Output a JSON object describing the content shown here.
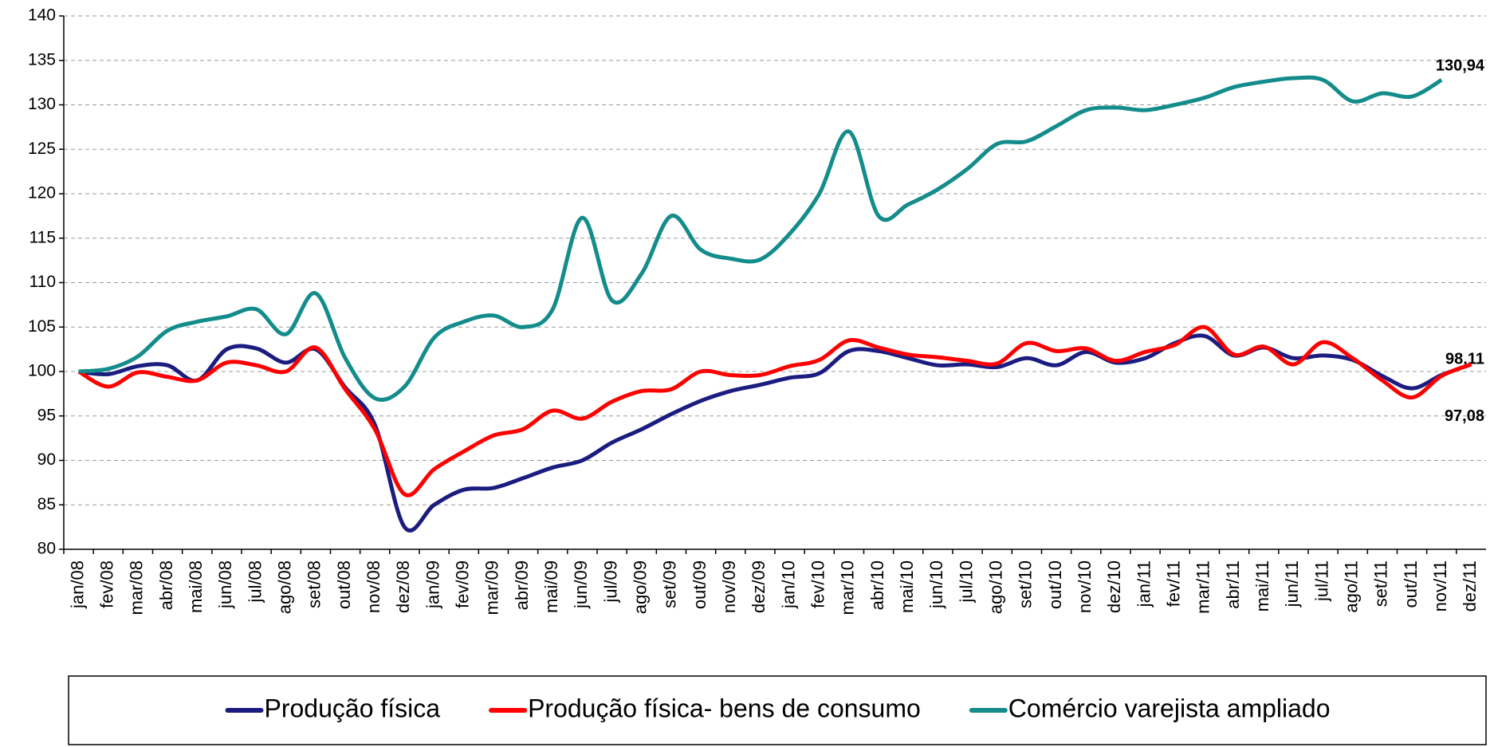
{
  "chart_data": {
    "type": "line",
    "categories": [
      "jan/08",
      "fev/08",
      "mar/08",
      "abr/08",
      "mai/08",
      "jun/08",
      "jul/08",
      "ago/08",
      "set/08",
      "out/08",
      "nov/08",
      "dez/08",
      "jan/09",
      "fev/09",
      "mar/09",
      "abr/09",
      "mai/09",
      "jun/09",
      "jul/09",
      "ago/09",
      "set/09",
      "out/09",
      "nov/09",
      "dez/09",
      "jan/10",
      "fev/10",
      "mar/10",
      "abr/10",
      "mai/10",
      "jun/10",
      "jul/10",
      "ago/10",
      "set/10",
      "out/10",
      "nov/10",
      "dez/10",
      "jan/11",
      "fev/11",
      "mar/11",
      "abr/11",
      "mai/11",
      "jun/11",
      "jul/11",
      "ago/11",
      "set/11",
      "out/11",
      "nov/11",
      "dez/11"
    ],
    "series": [
      {
        "name": "Produção física",
        "color": "#1b1c80",
        "values": [
          100,
          99.7,
          100.6,
          100.7,
          99.0,
          102.5,
          102.6,
          101.0,
          102.5,
          98.2,
          94.0,
          82.5,
          85.0,
          86.7,
          86.9,
          88.0,
          89.2,
          90.0,
          92.0,
          93.5,
          95.2,
          96.7,
          97.8,
          98.5,
          99.3,
          99.8,
          102.3,
          102.3,
          101.5,
          100.7,
          100.8,
          100.5,
          101.5,
          100.7,
          102.2,
          101.0,
          101.5,
          103.2,
          104.0,
          101.8,
          102.7,
          101.5,
          101.8,
          101.3,
          99.5,
          98.11,
          99.6,
          100.8
        ],
        "value_labels": [
          null,
          null,
          null,
          null,
          null,
          null,
          null,
          null,
          null,
          null,
          null,
          null,
          null,
          null,
          null,
          null,
          null,
          null,
          null,
          null,
          null,
          null,
          null,
          null,
          null,
          null,
          null,
          null,
          null,
          null,
          null,
          null,
          null,
          null,
          null,
          null,
          null,
          null,
          null,
          null,
          null,
          null,
          null,
          null,
          null,
          "98,11",
          null,
          null
        ]
      },
      {
        "name": "Produção física- bens de consumo",
        "color": "#ff0000",
        "values": [
          100,
          98.3,
          99.9,
          99.4,
          99.0,
          101.0,
          100.7,
          100.0,
          102.7,
          98.0,
          93.5,
          86.2,
          89.0,
          91.0,
          92.8,
          93.5,
          95.6,
          94.7,
          96.6,
          97.8,
          98.0,
          100.0,
          99.6,
          99.6,
          100.6,
          101.3,
          103.5,
          102.7,
          101.9,
          101.6,
          101.2,
          100.9,
          103.2,
          102.3,
          102.6,
          101.2,
          102.2,
          103.0,
          105.0,
          101.9,
          102.8,
          100.8,
          103.3,
          101.5,
          99.0,
          97.08,
          99.5,
          100.8
        ],
        "value_labels": [
          null,
          null,
          null,
          null,
          null,
          null,
          null,
          null,
          null,
          null,
          null,
          null,
          null,
          null,
          null,
          null,
          null,
          null,
          null,
          null,
          null,
          null,
          null,
          null,
          null,
          null,
          null,
          null,
          null,
          null,
          null,
          null,
          null,
          null,
          null,
          null,
          null,
          null,
          null,
          null,
          null,
          null,
          null,
          null,
          null,
          "97,08",
          null,
          null
        ]
      },
      {
        "name": "Comércio varejista ampliado",
        "color": "#148c8c",
        "values": [
          100,
          100.3,
          101.7,
          104.6,
          105.6,
          106.2,
          107.0,
          104.2,
          108.8,
          101.5,
          97.0,
          98.3,
          103.8,
          105.6,
          106.3,
          105.0,
          107.0,
          117.3,
          108.0,
          111.0,
          117.5,
          113.7,
          112.7,
          112.6,
          115.5,
          120.0,
          127.0,
          117.5,
          118.8,
          120.5,
          122.8,
          125.6,
          125.9,
          127.6,
          129.4,
          129.7,
          129.4,
          130.0,
          130.8,
          132.0,
          132.6,
          133.0,
          132.8,
          130.4,
          131.3,
          130.94,
          132.8,
          null
        ],
        "value_labels": [
          null,
          null,
          null,
          null,
          null,
          null,
          null,
          null,
          null,
          null,
          null,
          null,
          null,
          null,
          null,
          null,
          null,
          null,
          null,
          null,
          null,
          null,
          null,
          null,
          null,
          null,
          null,
          null,
          null,
          null,
          null,
          null,
          null,
          null,
          null,
          null,
          null,
          null,
          null,
          null,
          null,
          null,
          null,
          null,
          null,
          "130,94",
          null,
          null
        ]
      }
    ],
    "ylim": [
      80,
      140
    ],
    "yticks": [
      80,
      85,
      90,
      95,
      100,
      105,
      110,
      115,
      120,
      125,
      130,
      135,
      140
    ],
    "grid": true,
    "legend": "bottom"
  }
}
